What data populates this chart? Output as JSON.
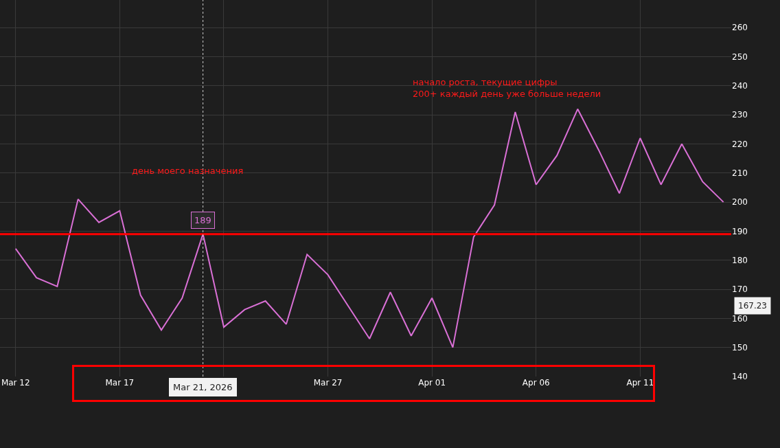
{
  "chart_data": {
    "type": "line",
    "x": [
      "2026-03-12",
      "2026-03-13",
      "2026-03-14",
      "2026-03-15",
      "2026-03-16",
      "2026-03-17",
      "2026-03-18",
      "2026-03-19",
      "2026-03-20",
      "2026-03-21",
      "2026-03-22",
      "2026-03-23",
      "2026-03-24",
      "2026-03-25",
      "2026-03-26",
      "2026-03-27",
      "2026-03-28",
      "2026-03-29",
      "2026-03-30",
      "2026-03-31",
      "2026-04-01",
      "2026-04-02",
      "2026-04-03",
      "2026-04-04",
      "2026-04-05",
      "2026-04-06",
      "2026-04-07",
      "2026-04-08",
      "2026-04-09",
      "2026-04-10",
      "2026-04-11",
      "2026-04-12",
      "2026-04-13",
      "2026-04-14",
      "2026-04-15"
    ],
    "series": [
      {
        "color": "#da70d6",
        "values": [
          184,
          174,
          171,
          201,
          193,
          197,
          168,
          156,
          167,
          189,
          157,
          163,
          166,
          158,
          182,
          175,
          164,
          153,
          169,
          154,
          167,
          150,
          188,
          199,
          231,
          206,
          216,
          232,
          218,
          203,
          222,
          206,
          220,
          207,
          200
        ]
      }
    ],
    "xlim": [
      "2026-03-11T06:00",
      "2026-04-15T09:00"
    ],
    "xticks": [
      {
        "value": "2026-03-12",
        "label": "Mar 12"
      },
      {
        "value": "2026-03-17",
        "label": "Mar 17"
      },
      {
        "value": "2026-03-22",
        "label": null
      },
      {
        "value": "2026-03-27",
        "label": "Mar 27"
      },
      {
        "value": "2026-04-01",
        "label": "Apr 01"
      },
      {
        "value": "2026-04-06",
        "label": "Apr 06"
      },
      {
        "value": "2026-04-11",
        "label": "Apr 11"
      }
    ],
    "ylim": [
      140,
      269.5
    ],
    "yticks": [
      140,
      150,
      160,
      170,
      180,
      190,
      200,
      210,
      220,
      230,
      240,
      250,
      260
    ],
    "grid": true,
    "marker": "none",
    "line_style": "solid",
    "ref_lines": [
      {
        "axis": "y",
        "value": 189,
        "color": "#ff0000",
        "line_style": "solid"
      },
      {
        "axis": "x",
        "value": "2026-03-21",
        "label": "Mar 21, 2026",
        "color": "#cccccc",
        "line_style": "dotted"
      }
    ],
    "annotations": [
      "день моего назначения",
      "начало роста, текущие цифры\n200+ каждый день уже больше недели",
      {
        "text": "189",
        "x": "2026-03-21",
        "y": 189
      },
      "167.23"
    ]
  }
}
